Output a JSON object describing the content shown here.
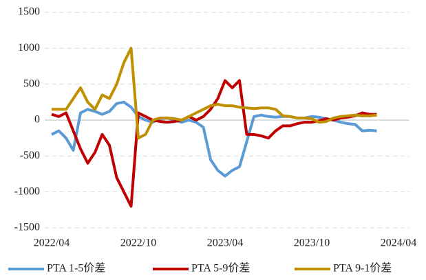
{
  "chart_data": {
    "type": "line",
    "categories": [
      "2022/04",
      null,
      null,
      null,
      null,
      null,
      null,
      null,
      null,
      null,
      null,
      null,
      "2022/10",
      null,
      null,
      null,
      null,
      null,
      null,
      null,
      null,
      null,
      null,
      null,
      "2023/04",
      null,
      null,
      null,
      null,
      null,
      null,
      null,
      null,
      null,
      null,
      null,
      "2023/10",
      null,
      null,
      null,
      null,
      null,
      null,
      null,
      null,
      null,
      null,
      null,
      "2024/04"
    ],
    "series": [
      {
        "name": "PTA 1-5价差",
        "color": "#5b9bd5",
        "values": [
          -200,
          -150,
          -250,
          -420,
          100,
          150,
          120,
          80,
          120,
          230,
          250,
          180,
          50,
          0,
          -30,
          20,
          30,
          0,
          -30,
          0,
          -30,
          -100,
          -550,
          -700,
          -780,
          -700,
          -650,
          -300,
          50,
          70,
          50,
          40,
          50,
          50,
          30,
          30,
          50,
          40,
          20,
          0,
          -30,
          -50,
          -60,
          -150,
          -140,
          -150,
          null,
          null,
          null
        ]
      },
      {
        "name": "PTA 5-9价差",
        "color": "#c00000",
        "values": [
          80,
          50,
          100,
          -150,
          -400,
          -600,
          -450,
          -200,
          -350,
          -800,
          -1000,
          -1200,
          100,
          50,
          0,
          -20,
          -30,
          -20,
          0,
          50,
          0,
          50,
          150,
          300,
          550,
          450,
          550,
          -200,
          -200,
          -220,
          -250,
          -150,
          -80,
          -80,
          -50,
          -30,
          -30,
          -10,
          20,
          0,
          30,
          40,
          60,
          100,
          80,
          80,
          null,
          null,
          null
        ]
      },
      {
        "name": "PTA 9-1价差",
        "color": "#bf9000",
        "values": [
          150,
          150,
          150,
          300,
          450,
          250,
          150,
          350,
          300,
          500,
          800,
          1000,
          -250,
          -200,
          0,
          30,
          30,
          20,
          0,
          50,
          100,
          150,
          200,
          220,
          200,
          200,
          180,
          170,
          160,
          170,
          170,
          150,
          60,
          50,
          30,
          30,
          20,
          -30,
          -20,
          30,
          50,
          60,
          70,
          60,
          60,
          70,
          null,
          null,
          null
        ]
      }
    ],
    "ylim": [
      -1500,
      1500
    ],
    "yticks": [
      -1500,
      -1000,
      -500,
      0,
      500,
      1000,
      1500
    ],
    "grid": true,
    "legend": "bottom"
  }
}
